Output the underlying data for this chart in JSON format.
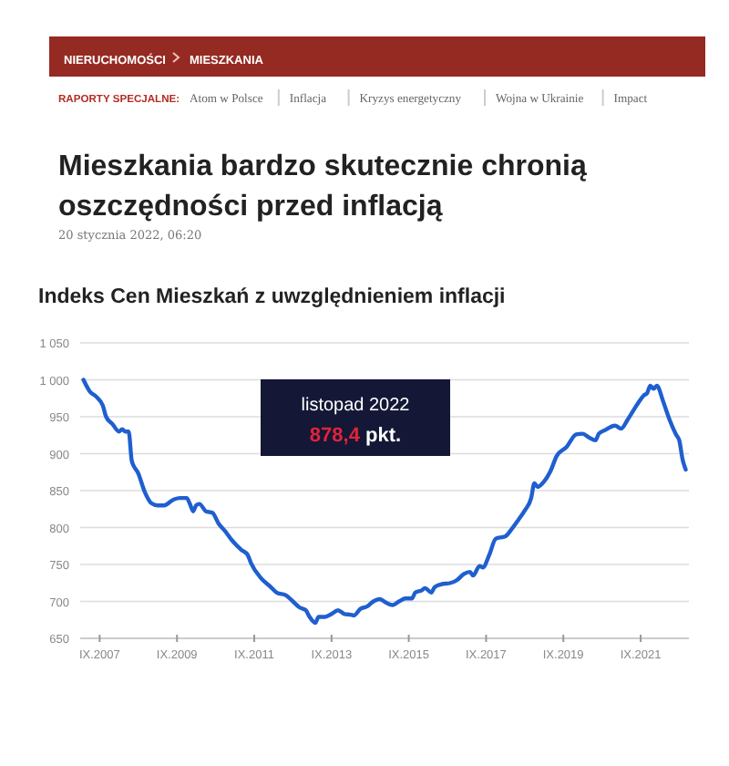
{
  "chart_data": {
    "type": "line",
    "title": "Mieszkania bardzo skutecznie chronią oszczędności przed inflacją",
    "subtitle": "Indeks Cen Mieszkań z uwzględnieniem inflacji",
    "annotations": [
      "NIERUCHOMOŚCI",
      "MIESZKANIA",
      "RAPORTY SPECJALNE:",
      "Atom w Polsce",
      "Inflacja",
      "Kryzys energetyczny",
      "Wojna w Ukrainie",
      "Impact",
      "20 stycznia 2022, 06:20",
      "listopad 2022",
      "878,4 pkt."
    ],
    "x": [
      "2007-04",
      "2007-06",
      "2007-08",
      "2007-10",
      "2007-11",
      "2008-01",
      "2008-03",
      "2008-04",
      "2008-05",
      "2008-06",
      "2008-07",
      "2008-09",
      "2008-11",
      "2009-01",
      "2009-03",
      "2009-05",
      "2009-08",
      "2009-10",
      "2009-12",
      "2010-01",
      "2010-02",
      "2010-03",
      "2010-04",
      "2010-06",
      "2010-08",
      "2010-10",
      "2010-12",
      "2011-02",
      "2011-05",
      "2011-07",
      "2011-08",
      "2011-11",
      "2012-02",
      "2012-04",
      "2012-07",
      "2012-09",
      "2012-11",
      "2013-01",
      "2013-02",
      "2013-04",
      "2013-05",
      "2013-07",
      "2013-09",
      "2013-11",
      "2014-01",
      "2014-03",
      "2014-04",
      "2014-06",
      "2014-08",
      "2014-10",
      "2014-12",
      "2015-02",
      "2015-04",
      "2015-06",
      "2015-08",
      "2015-10",
      "2015-11",
      "2016-01",
      "2016-02",
      "2016-04",
      "2016-05",
      "2016-07",
      "2016-10",
      "2016-12",
      "2017-02",
      "2017-04",
      "2017-05",
      "2017-07",
      "2017-08",
      "2017-10",
      "2017-12",
      "2018-03",
      "2018-05",
      "2018-07",
      "2018-09",
      "2018-11",
      "2018-12",
      "2019-01",
      "2019-03",
      "2019-05",
      "2019-07",
      "2019-10",
      "2020-01",
      "2020-03",
      "2020-05",
      "2020-07",
      "2020-08",
      "2020-10",
      "2021-01",
      "2021-03",
      "2021-05",
      "2021-08",
      "2021-10",
      "2021-11",
      "2021-12",
      "2022-01",
      "2022-02",
      "2022-04",
      "2022-06",
      "2022-08",
      "2022-09",
      "2022-10",
      "2022-11"
    ],
    "series": [
      {
        "color": "#1f5fcf",
        "values": [
          1000,
          984,
          977,
          965,
          950,
          940,
          930,
          933,
          930,
          930,
          890,
          873,
          848,
          833,
          830,
          830,
          838,
          840,
          840,
          832,
          822,
          830,
          832,
          822,
          820,
          805,
          795,
          783,
          770,
          763,
          752,
          732,
          720,
          712,
          708,
          700,
          692,
          688,
          680,
          671,
          679,
          679,
          683,
          688,
          683,
          682,
          681,
          690,
          693,
          700,
          703,
          698,
          695,
          700,
          704,
          704,
          712,
          715,
          718,
          712,
          719,
          723,
          725,
          729,
          737,
          740,
          735,
          748,
          746,
          763,
          785,
          788,
          798,
          810,
          823,
          840,
          860,
          855,
          862,
          876,
          897,
          909,
          926,
          927,
          922,
          918,
          927,
          932,
          938,
          934,
          946,
          967,
          979,
          982,
          992,
          988,
          992,
          971,
          946,
          926,
          918,
          893,
          878.4
        ]
      }
    ],
    "xlim": [
      "2007-03",
      "2022-12"
    ],
    "ylim": [
      650,
      1050
    ],
    "xticks": [
      {
        "value": "2007-09",
        "label": "IX.2007"
      },
      {
        "value": "2009-09",
        "label": "IX.2009"
      },
      {
        "value": "2011-09",
        "label": "IX.2011"
      },
      {
        "value": "2013-09",
        "label": "IX.2013"
      },
      {
        "value": "2015-09",
        "label": "IX.2015"
      },
      {
        "value": "2017-09",
        "label": "IX.2017"
      },
      {
        "value": "2019-09",
        "label": "IX.2019"
      },
      {
        "value": "2021-09",
        "label": "IX.2021"
      }
    ],
    "yticks": [
      {
        "value": 650,
        "label": "650"
      },
      {
        "value": 700,
        "label": "700"
      },
      {
        "value": 750,
        "label": "750"
      },
      {
        "value": 800,
        "label": "800"
      },
      {
        "value": 850,
        "label": "850"
      },
      {
        "value": 900,
        "label": "900"
      },
      {
        "value": 950,
        "label": "950"
      },
      {
        "value": 1000,
        "label": "1 000"
      },
      {
        "value": 1050,
        "label": "1 050"
      }
    ],
    "grid": "y",
    "marker": "none",
    "line_style": "solid"
  }
}
